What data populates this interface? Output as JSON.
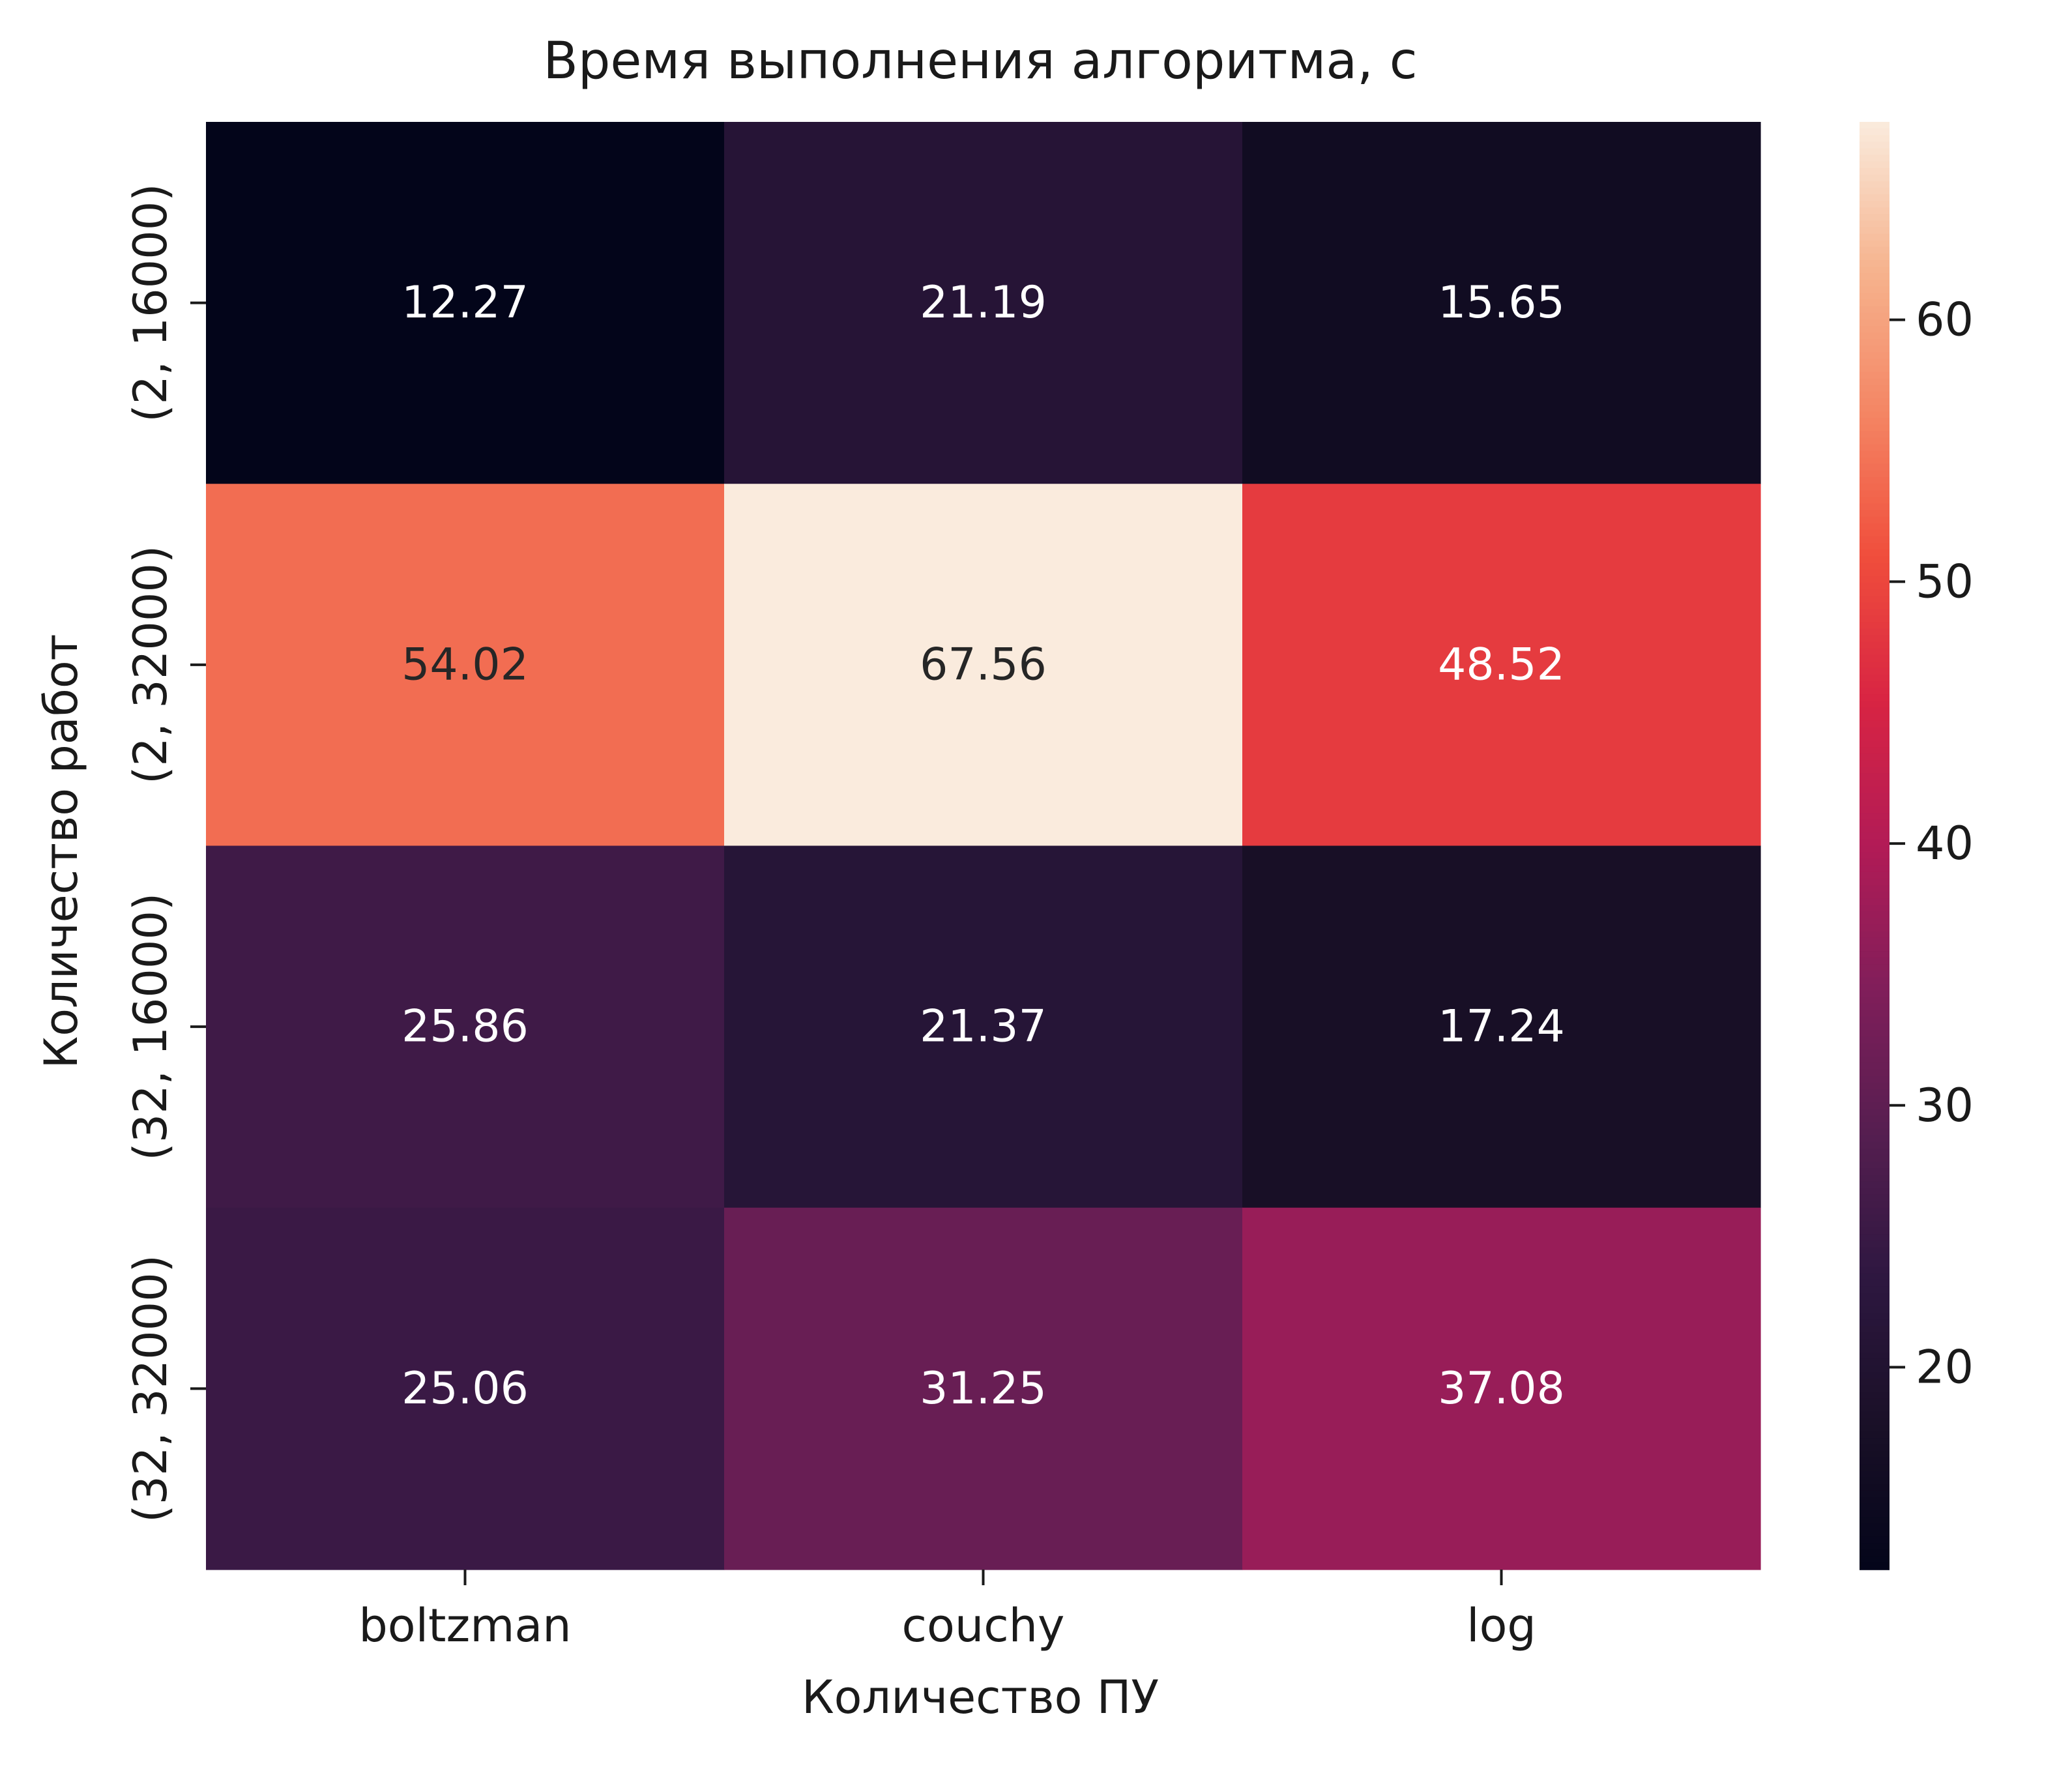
{
  "chart_data": {
    "type": "heatmap",
    "title": "Время выполнения алгоритма, с",
    "xlabel": "Количество ПУ",
    "ylabel": "Количество работ",
    "x_categories": [
      "boltzman",
      "couchy",
      "log"
    ],
    "y_categories": [
      "(2, 16000)",
      "(2, 32000)",
      "(32, 16000)",
      "(32, 32000)"
    ],
    "values": [
      [
        12.27,
        21.19,
        15.65
      ],
      [
        54.02,
        67.56,
        48.52
      ],
      [
        25.86,
        21.37,
        17.24
      ],
      [
        25.06,
        31.25,
        37.08
      ]
    ],
    "annotations": [
      [
        "12.27",
        "21.19",
        "15.65"
      ],
      [
        "54.02",
        "67.56",
        "48.52"
      ],
      [
        "25.86",
        "21.37",
        "17.24"
      ],
      [
        "25.06",
        "31.25",
        "37.08"
      ]
    ],
    "colorbar": {
      "colormap": "rocket",
      "vmin": 12.27,
      "vmax": 67.56,
      "ticks": [
        "20",
        "30",
        "40",
        "50",
        "60"
      ]
    }
  }
}
